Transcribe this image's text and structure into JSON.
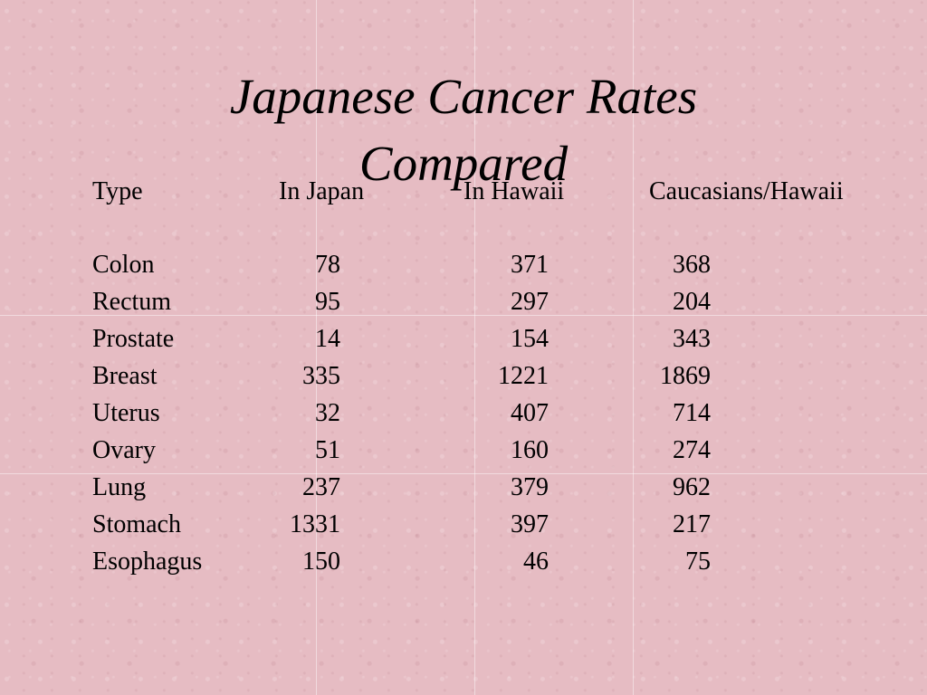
{
  "slide": {
    "title": "Japanese Cancer Rates Compared"
  },
  "table": {
    "headers": {
      "type": "Type",
      "in_japan": "In Japan",
      "in_hawaii": "In Hawaii",
      "caucasians_hawaii": "Caucasians/Hawaii"
    },
    "rows": [
      {
        "type": "Colon",
        "in_japan": "78",
        "in_hawaii": "371",
        "caucasians_hawaii": "368"
      },
      {
        "type": "Rectum",
        "in_japan": "95",
        "in_hawaii": "297",
        "caucasians_hawaii": "204"
      },
      {
        "type": "Prostate",
        "in_japan": "14",
        "in_hawaii": "154",
        "caucasians_hawaii": "343"
      },
      {
        "type": "Breast",
        "in_japan": "335",
        "in_hawaii": "1221",
        "caucasians_hawaii": "1869"
      },
      {
        "type": "Uterus",
        "in_japan": "32",
        "in_hawaii": "407",
        "caucasians_hawaii": "714"
      },
      {
        "type": "Ovary",
        "in_japan": "51",
        "in_hawaii": "160",
        "caucasians_hawaii": "274"
      },
      {
        "type": "Lung",
        "in_japan": "237",
        "in_hawaii": "379",
        "caucasians_hawaii": "962"
      },
      {
        "type": "Stomach",
        "in_japan": "1331",
        "in_hawaii": "397",
        "caucasians_hawaii": "217"
      },
      {
        "type": "Esophagus",
        "in_japan": "150",
        "in_hawaii": "46",
        "caucasians_hawaii": "75"
      }
    ]
  }
}
